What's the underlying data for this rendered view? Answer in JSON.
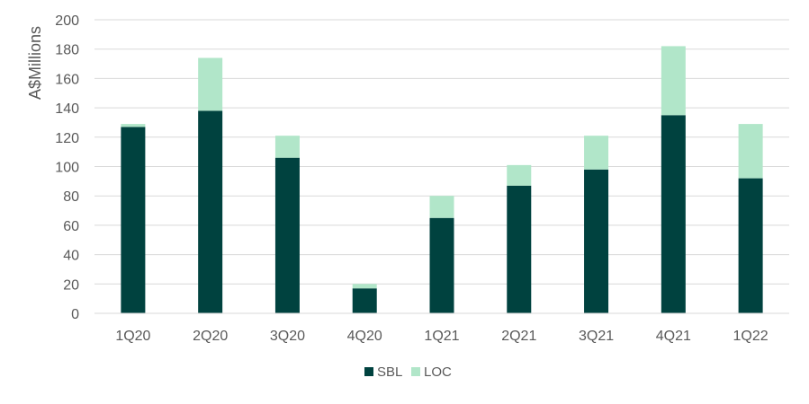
{
  "chart_data": {
    "type": "bar",
    "stacked": true,
    "categories": [
      "1Q20",
      "2Q20",
      "3Q20",
      "4Q20",
      "1Q21",
      "2Q21",
      "3Q21",
      "4Q21",
      "1Q22"
    ],
    "series": [
      {
        "name": "SBL",
        "values": [
          127,
          138,
          106,
          17,
          65,
          87,
          98,
          135,
          92
        ],
        "color": "#00423f"
      },
      {
        "name": "LOC",
        "values": [
          2,
          36,
          15,
          3,
          15,
          14,
          23,
          47,
          37
        ],
        "color": "#b1e6c9"
      }
    ],
    "ylabel": "A$Millions",
    "ylim": [
      0,
      200
    ],
    "yticks": [
      0,
      20,
      40,
      60,
      80,
      100,
      120,
      140,
      160,
      180,
      200
    ],
    "grid": true,
    "legend": "bottom-center"
  }
}
